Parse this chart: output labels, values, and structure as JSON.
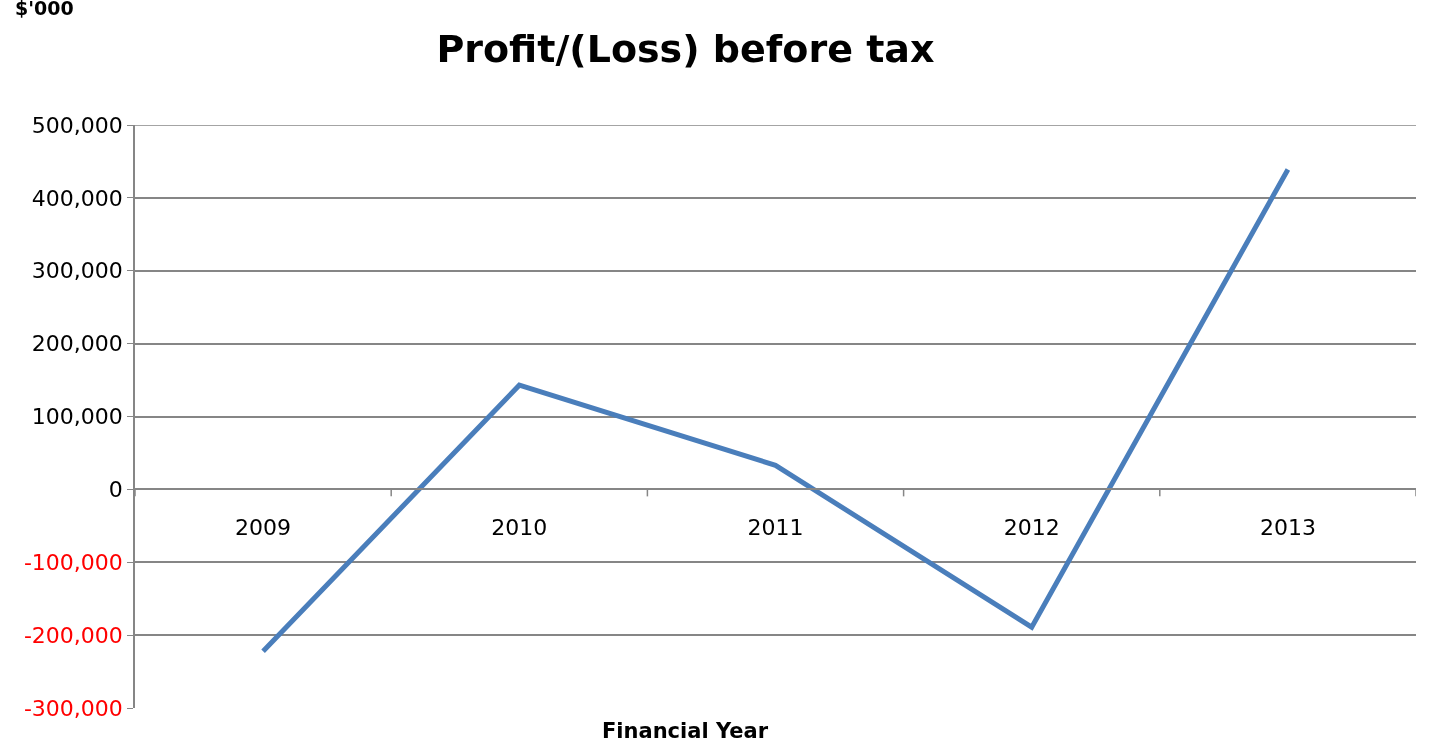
{
  "chart_data": {
    "type": "line",
    "title": "Profit/(Loss) before tax",
    "ylabel": "$'000",
    "xlabel": "Financial Year",
    "categories": [
      "2009",
      "2010",
      "2011",
      "2012",
      "2013"
    ],
    "series": [
      {
        "color": "#4a7ebb",
        "values": [
          -222000,
          143000,
          33000,
          -189000,
          439000
        ]
      }
    ],
    "ylim": [
      -300000,
      500000
    ],
    "yticks": [
      {
        "value": -300000,
        "label": "-300,000"
      },
      {
        "value": -200000,
        "label": "-200,000"
      },
      {
        "value": -100000,
        "label": "-100,000"
      },
      {
        "value": 0,
        "label": "0"
      },
      {
        "value": 100000,
        "label": "100,000"
      },
      {
        "value": 200000,
        "label": "200,000"
      },
      {
        "value": 300000,
        "label": "300,000"
      },
      {
        "value": 400000,
        "label": "400,000"
      },
      {
        "value": 500000,
        "label": "500,000"
      }
    ],
    "grid": "y",
    "marker": "none",
    "line_style": "solid"
  }
}
